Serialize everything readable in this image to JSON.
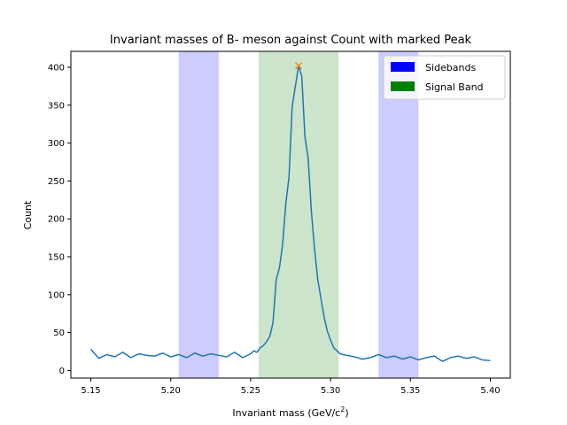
{
  "chart_data": {
    "type": "line",
    "title": "Invariant masses of B- meson against Count with marked Peak",
    "xlabel": "Invariant mass (GeV/c",
    "xlabel_sup": "2",
    "xlabel_suffix": ")",
    "ylabel": "Count",
    "xlim": [
      5.1375,
      5.4125
    ],
    "ylim": [
      -10,
      421
    ],
    "xticks": [
      5.15,
      5.2,
      5.25,
      5.3,
      5.35,
      5.4
    ],
    "xtick_labels": [
      "5.15",
      "5.20",
      "5.25",
      "5.30",
      "5.35",
      "5.40"
    ],
    "yticks": [
      0,
      50,
      100,
      150,
      200,
      250,
      300,
      350,
      400
    ],
    "ytick_labels": [
      "0",
      "50",
      "100",
      "150",
      "200",
      "250",
      "300",
      "350",
      "400"
    ],
    "bands": [
      {
        "name": "Sidebands",
        "from": 5.205,
        "to": 5.23,
        "color": "#ccccff"
      },
      {
        "name": "Signal Band",
        "from": 5.255,
        "to": 5.305,
        "color": "#cce5cc"
      },
      {
        "name": "Sidebands",
        "from": 5.33,
        "to": 5.355,
        "color": "#ccccff"
      }
    ],
    "legend": {
      "placement": "top-right",
      "entries": [
        {
          "label": "Sidebands",
          "color": "#0000ff"
        },
        {
          "label": "Signal Band",
          "color": "#008000"
        }
      ]
    },
    "series": [
      {
        "color": "#1f77b4",
        "x": [
          5.15,
          5.155,
          5.16,
          5.165,
          5.17,
          5.175,
          5.18,
          5.185,
          5.19,
          5.195,
          5.2,
          5.205,
          5.21,
          5.215,
          5.22,
          5.225,
          5.23,
          5.235,
          5.24,
          5.245,
          5.25,
          5.252,
          5.254,
          5.256,
          5.258,
          5.26,
          5.262,
          5.264,
          5.266,
          5.268,
          5.27,
          5.272,
          5.274,
          5.276,
          5.278,
          5.28,
          5.282,
          5.284,
          5.286,
          5.288,
          5.29,
          5.292,
          5.294,
          5.296,
          5.298,
          5.3,
          5.302,
          5.304,
          5.306,
          5.31,
          5.315,
          5.32,
          5.325,
          5.33,
          5.335,
          5.34,
          5.345,
          5.35,
          5.355,
          5.36,
          5.365,
          5.37,
          5.375,
          5.38,
          5.385,
          5.39,
          5.395,
          5.4
        ],
        "y": [
          28,
          16,
          21,
          18,
          24,
          17,
          22,
          20,
          19,
          23,
          18,
          21,
          17,
          23,
          19,
          22,
          20,
          18,
          24,
          17,
          22,
          26,
          24,
          30,
          33,
          38,
          45,
          63,
          120,
          135,
          166,
          220,
          255,
          348,
          375,
          402,
          388,
          308,
          280,
          210,
          160,
          120,
          95,
          70,
          52,
          40,
          30,
          26,
          22,
          20,
          18,
          15,
          17,
          21,
          17,
          19,
          15,
          18,
          14,
          17,
          19,
          12,
          17,
          19,
          16,
          18,
          14,
          13
        ]
      }
    ],
    "peak": {
      "x": 5.28,
      "y": 402,
      "color": "#ff7f0e"
    }
  }
}
